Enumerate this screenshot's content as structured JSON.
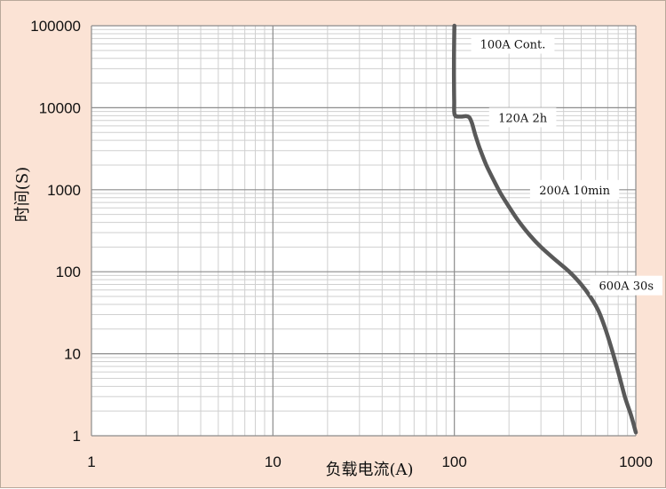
{
  "chart_data": {
    "type": "line",
    "xlabel": "负载电流(A)",
    "ylabel": "时间(S)",
    "x_scale": "log",
    "y_scale": "log",
    "xlim": [
      1,
      1000
    ],
    "ylim": [
      1,
      100000
    ],
    "grid": true,
    "x_ticks": [
      "1",
      "10",
      "100",
      "1000"
    ],
    "y_ticks": [
      "1",
      "10",
      "100",
      "1000",
      "10000",
      "100000"
    ],
    "series": [
      {
        "color": "#595959",
        "x": [
          100,
          99.6,
          99.5,
          99.8,
          100.5,
          108,
          116,
          121,
          125,
          130,
          138,
          150,
          165,
          180,
          200,
          225,
          260,
          300,
          360,
          430,
          500,
          560,
          620,
          680,
          740,
          800,
          870,
          940,
          1000
        ],
        "y": [
          100000,
          50000,
          25000,
          12000,
          8200,
          7800,
          7900,
          7600,
          6500,
          4800,
          3200,
          2000,
          1300,
          900,
          620,
          420,
          280,
          200,
          140,
          100,
          70,
          50,
          34,
          20,
          11,
          6,
          3,
          1.8,
          1.1
        ]
      }
    ],
    "annotations": [
      {
        "text": "100A Cont.",
        "x": 210,
        "y": 60000
      },
      {
        "text": "120A 2h",
        "x": 238,
        "y": 7600
      },
      {
        "text": "200A 10min",
        "x": 460,
        "y": 1000
      },
      {
        "text": "600A 30s",
        "x": 1040,
        "y": 68
      }
    ]
  }
}
